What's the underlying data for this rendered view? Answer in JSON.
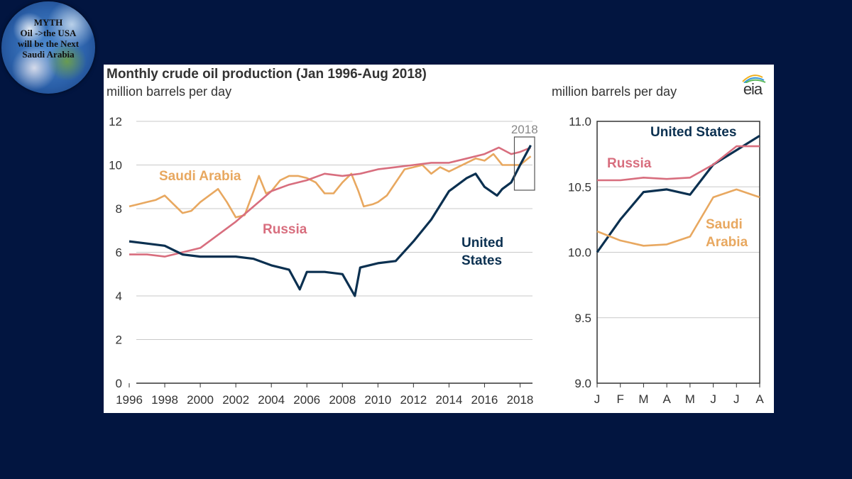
{
  "badge": {
    "text": "MYTH\nOil ->the USA\nwill be the Next\nSaudi Arabia"
  },
  "header": {
    "title": "Monthly crude oil production (Jan 1996-Aug 2018)",
    "subtitle": "million barrels per day",
    "subtitle_right": "million barrels per day",
    "logo_text": "eia",
    "inset_tag": "2018"
  },
  "colors": {
    "united_states": "#0b3050",
    "russia": "#d86e7e",
    "saudi_arabia": "#e8a860",
    "grid": "#c9c9c9",
    "background": "#021540"
  },
  "chart_data": [
    {
      "type": "line",
      "title": "Monthly crude oil production (Jan 1996-Aug 2018)",
      "ylabel": "million barrels per day",
      "xlim": [
        1996,
        2018.7
      ],
      "ylim": [
        0,
        12
      ],
      "x_ticks": [
        "1996",
        "1998",
        "2000",
        "2002",
        "2004",
        "2006",
        "2008",
        "2010",
        "2012",
        "2014",
        "2016",
        "2018"
      ],
      "y_ticks": [
        "0",
        "2",
        "4",
        "6",
        "8",
        "10",
        "12"
      ],
      "grid": "horizontal",
      "series": [
        {
          "name": "Saudi Arabia",
          "label_lines": [
            "Saudi Arabia"
          ],
          "color_key": "saudi_arabia",
          "points": [
            [
              1996,
              8.1
            ],
            [
              1996.5,
              8.2
            ],
            [
              1997,
              8.3
            ],
            [
              1997.5,
              8.4
            ],
            [
              1998,
              8.6
            ],
            [
              1998.5,
              8.2
            ],
            [
              1999,
              7.8
            ],
            [
              1999.5,
              7.9
            ],
            [
              2000,
              8.3
            ],
            [
              2000.5,
              8.6
            ],
            [
              2001,
              8.9
            ],
            [
              2001.5,
              8.3
            ],
            [
              2002,
              7.6
            ],
            [
              2002.5,
              7.7
            ],
            [
              2003,
              8.8
            ],
            [
              2003.3,
              9.5
            ],
            [
              2003.7,
              8.7
            ],
            [
              2004,
              8.8
            ],
            [
              2004.5,
              9.3
            ],
            [
              2005,
              9.5
            ],
            [
              2005.5,
              9.5
            ],
            [
              2006,
              9.4
            ],
            [
              2006.5,
              9.2
            ],
            [
              2007,
              8.7
            ],
            [
              2007.5,
              8.7
            ],
            [
              2008,
              9.2
            ],
            [
              2008.5,
              9.6
            ],
            [
              2008.9,
              8.8
            ],
            [
              2009.2,
              8.1
            ],
            [
              2009.7,
              8.2
            ],
            [
              2010,
              8.3
            ],
            [
              2010.5,
              8.6
            ],
            [
              2011,
              9.2
            ],
            [
              2011.5,
              9.8
            ],
            [
              2012,
              9.9
            ],
            [
              2012.5,
              10.0
            ],
            [
              2013,
              9.6
            ],
            [
              2013.5,
              9.9
            ],
            [
              2014,
              9.7
            ],
            [
              2014.5,
              9.9
            ],
            [
              2015,
              10.1
            ],
            [
              2015.5,
              10.3
            ],
            [
              2016,
              10.2
            ],
            [
              2016.5,
              10.5
            ],
            [
              2017,
              10.0
            ],
            [
              2017.5,
              10.0
            ],
            [
              2018,
              10.0
            ],
            [
              2018.6,
              10.4
            ]
          ]
        },
        {
          "name": "Russia",
          "label_lines": [
            "Russia"
          ],
          "color_key": "russia",
          "points": [
            [
              1996,
              5.9
            ],
            [
              1997,
              5.9
            ],
            [
              1998,
              5.8
            ],
            [
              1999,
              6.0
            ],
            [
              2000,
              6.2
            ],
            [
              2001,
              6.8
            ],
            [
              2002,
              7.4
            ],
            [
              2003,
              8.1
            ],
            [
              2004,
              8.8
            ],
            [
              2005,
              9.1
            ],
            [
              2006,
              9.3
            ],
            [
              2007,
              9.6
            ],
            [
              2008,
              9.5
            ],
            [
              2009,
              9.6
            ],
            [
              2010,
              9.8
            ],
            [
              2011,
              9.9
            ],
            [
              2012,
              10.0
            ],
            [
              2013,
              10.1
            ],
            [
              2014,
              10.1
            ],
            [
              2015,
              10.3
            ],
            [
              2016,
              10.5
            ],
            [
              2016.8,
              10.8
            ],
            [
              2017.5,
              10.5
            ],
            [
              2018,
              10.6
            ],
            [
              2018.6,
              10.8
            ]
          ]
        },
        {
          "name": "United States",
          "label_lines": [
            "United",
            "States"
          ],
          "color_key": "united_states",
          "points": [
            [
              1996,
              6.5
            ],
            [
              1997,
              6.4
            ],
            [
              1998,
              6.3
            ],
            [
              1999,
              5.9
            ],
            [
              2000,
              5.8
            ],
            [
              2001,
              5.8
            ],
            [
              2002,
              5.8
            ],
            [
              2003,
              5.7
            ],
            [
              2004,
              5.4
            ],
            [
              2005,
              5.2
            ],
            [
              2005.6,
              4.3
            ],
            [
              2006,
              5.1
            ],
            [
              2007,
              5.1
            ],
            [
              2008,
              5.0
            ],
            [
              2008.7,
              4.0
            ],
            [
              2009,
              5.3
            ],
            [
              2010,
              5.5
            ],
            [
              2011,
              5.6
            ],
            [
              2012,
              6.5
            ],
            [
              2013,
              7.5
            ],
            [
              2014,
              8.8
            ],
            [
              2015,
              9.4
            ],
            [
              2015.5,
              9.6
            ],
            [
              2016,
              9.0
            ],
            [
              2016.7,
              8.6
            ],
            [
              2017,
              8.9
            ],
            [
              2017.5,
              9.2
            ],
            [
              2018,
              10.0
            ],
            [
              2018.6,
              10.9
            ]
          ]
        }
      ]
    },
    {
      "type": "line",
      "title": "2018",
      "ylabel": "million barrels per day",
      "ylim": [
        9.0,
        11.0
      ],
      "categories": [
        "J",
        "F",
        "M",
        "A",
        "M",
        "J",
        "J",
        "A"
      ],
      "y_ticks": [
        "9.0",
        "9.5",
        "10.0",
        "10.5",
        "11.0"
      ],
      "grid": "horizontal",
      "series": [
        {
          "name": "United States",
          "label_lines": [
            "United States"
          ],
          "color_key": "united_states",
          "values": [
            10.0,
            10.25,
            10.46,
            10.48,
            10.44,
            10.67,
            10.78,
            10.89
          ]
        },
        {
          "name": "Russia",
          "label_lines": [
            "Russia"
          ],
          "color_key": "russia",
          "values": [
            10.55,
            10.55,
            10.57,
            10.56,
            10.57,
            10.67,
            10.81,
            10.81
          ]
        },
        {
          "name": "Saudi Arabia",
          "label_lines": [
            "Saudi",
            "Arabia"
          ],
          "color_key": "saudi_arabia",
          "values": [
            10.16,
            10.09,
            10.05,
            10.06,
            10.12,
            10.42,
            10.48,
            10.42
          ]
        }
      ]
    }
  ]
}
